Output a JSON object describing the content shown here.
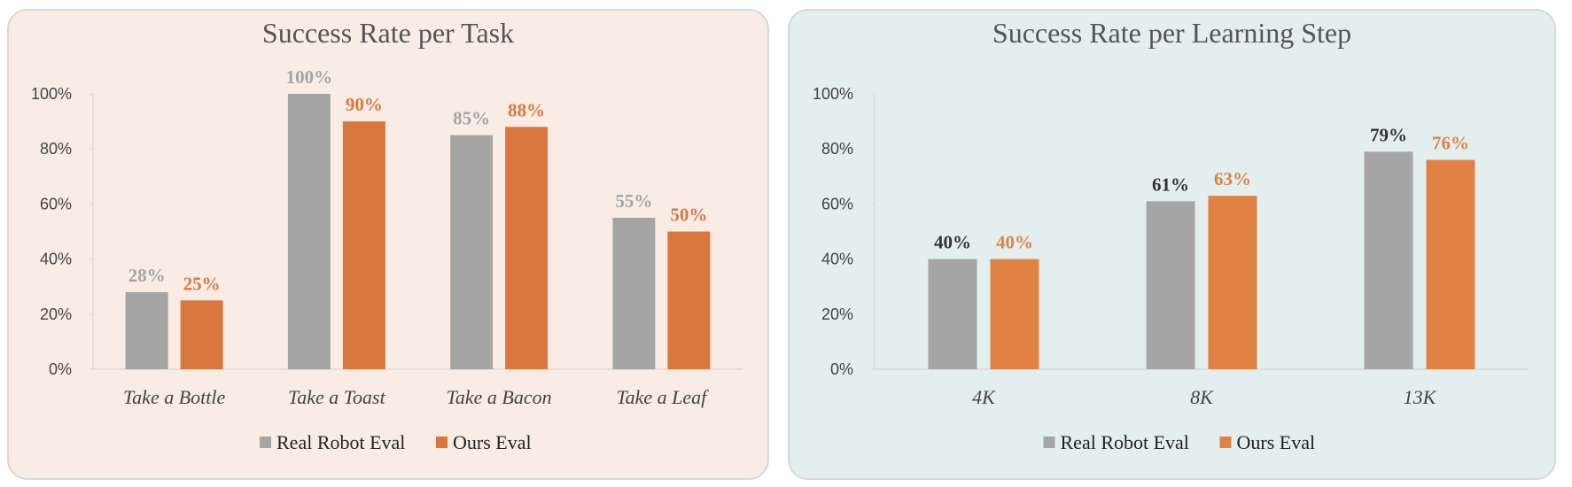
{
  "chart_data": [
    {
      "type": "bar",
      "title": "Success Rate per Task",
      "categories": [
        "Take a Bottle",
        "Take a Toast",
        "Take a Bacon",
        "Take a Leaf"
      ],
      "series": [
        {
          "name": "Real Robot Eval",
          "values": [
            28,
            100,
            85,
            55
          ],
          "labels": [
            "28%",
            "100%",
            "85%",
            "55%"
          ],
          "color": "#a5a5a5",
          "label_color": "#a5a5a5"
        },
        {
          "name": "Ours Eval",
          "values": [
            25,
            90,
            88,
            50
          ],
          "labels": [
            "25%",
            "90%",
            "88%",
            "50%"
          ],
          "color": "#d9773f",
          "label_color": "#d9773f"
        }
      ],
      "yticks": [
        "0%",
        "20%",
        "40%",
        "60%",
        "80%",
        "100%"
      ],
      "ylim": [
        0,
        100
      ],
      "legend": "bottom",
      "grid": false,
      "background": "#f9ece5"
    },
    {
      "type": "bar",
      "title": "Success Rate per Learning Step",
      "categories": [
        "4K",
        "8K",
        "13K"
      ],
      "series": [
        {
          "name": "Real Robot Eval",
          "values": [
            40,
            61,
            79
          ],
          "labels": [
            "40%",
            "61%",
            "79%"
          ],
          "color": "#a5a5a5",
          "label_color": "#333333"
        },
        {
          "name": "Ours Eval",
          "values": [
            40,
            63,
            76
          ],
          "labels": [
            "40%",
            "63%",
            "76%"
          ],
          "color": "#e08243",
          "label_color": "#e08243"
        }
      ],
      "yticks": [
        "0%",
        "20%",
        "40%",
        "60%",
        "80%",
        "100%"
      ],
      "ylim": [
        0,
        100
      ],
      "legend": "bottom",
      "grid": false,
      "background": "#e3eeee"
    }
  ]
}
